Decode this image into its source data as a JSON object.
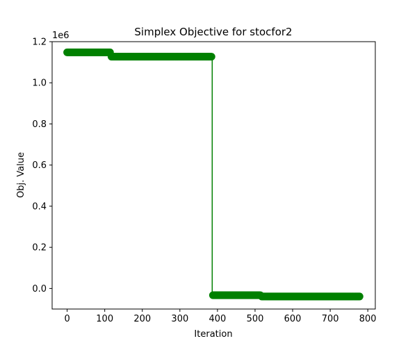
{
  "chart_data": {
    "type": "line",
    "title": "Simplex Objective for stocfor2",
    "xlabel": "Iteration",
    "ylabel": "Obj. Value",
    "y_offset_label": "1e6",
    "xlim": [
      -40,
      820
    ],
    "ylim": [
      -0.1,
      1.2
    ],
    "x_ticks": [
      0,
      100,
      200,
      300,
      400,
      500,
      600,
      700,
      800
    ],
    "x_tick_labels": [
      "0",
      "100",
      "200",
      "300",
      "400",
      "500",
      "600",
      "700",
      "800"
    ],
    "y_ticks": [
      0.0,
      0.2,
      0.4,
      0.6,
      0.8,
      1.0,
      1.2
    ],
    "y_tick_labels": [
      "0.0",
      "0.2",
      "0.4",
      "0.6",
      "0.8",
      "1.0",
      "1.2"
    ],
    "grid": false,
    "series": [
      {
        "color": "#008000",
        "marker": "circle",
        "segments": [
          {
            "x_start": 0,
            "x_end": 115,
            "y": 1.148
          },
          {
            "x_start": 118,
            "x_end": 385,
            "y": 1.127
          },
          {
            "x_start": 388,
            "x_end": 515,
            "y": -0.033
          },
          {
            "x_start": 518,
            "x_end": 778,
            "y": -0.039
          }
        ],
        "jumps": [
          {
            "x": 117,
            "from": 1.148,
            "to": 1.127
          },
          {
            "x": 386,
            "from": 1.127,
            "to": -0.033
          },
          {
            "x": 516,
            "from": -0.033,
            "to": -0.039
          }
        ]
      }
    ]
  }
}
